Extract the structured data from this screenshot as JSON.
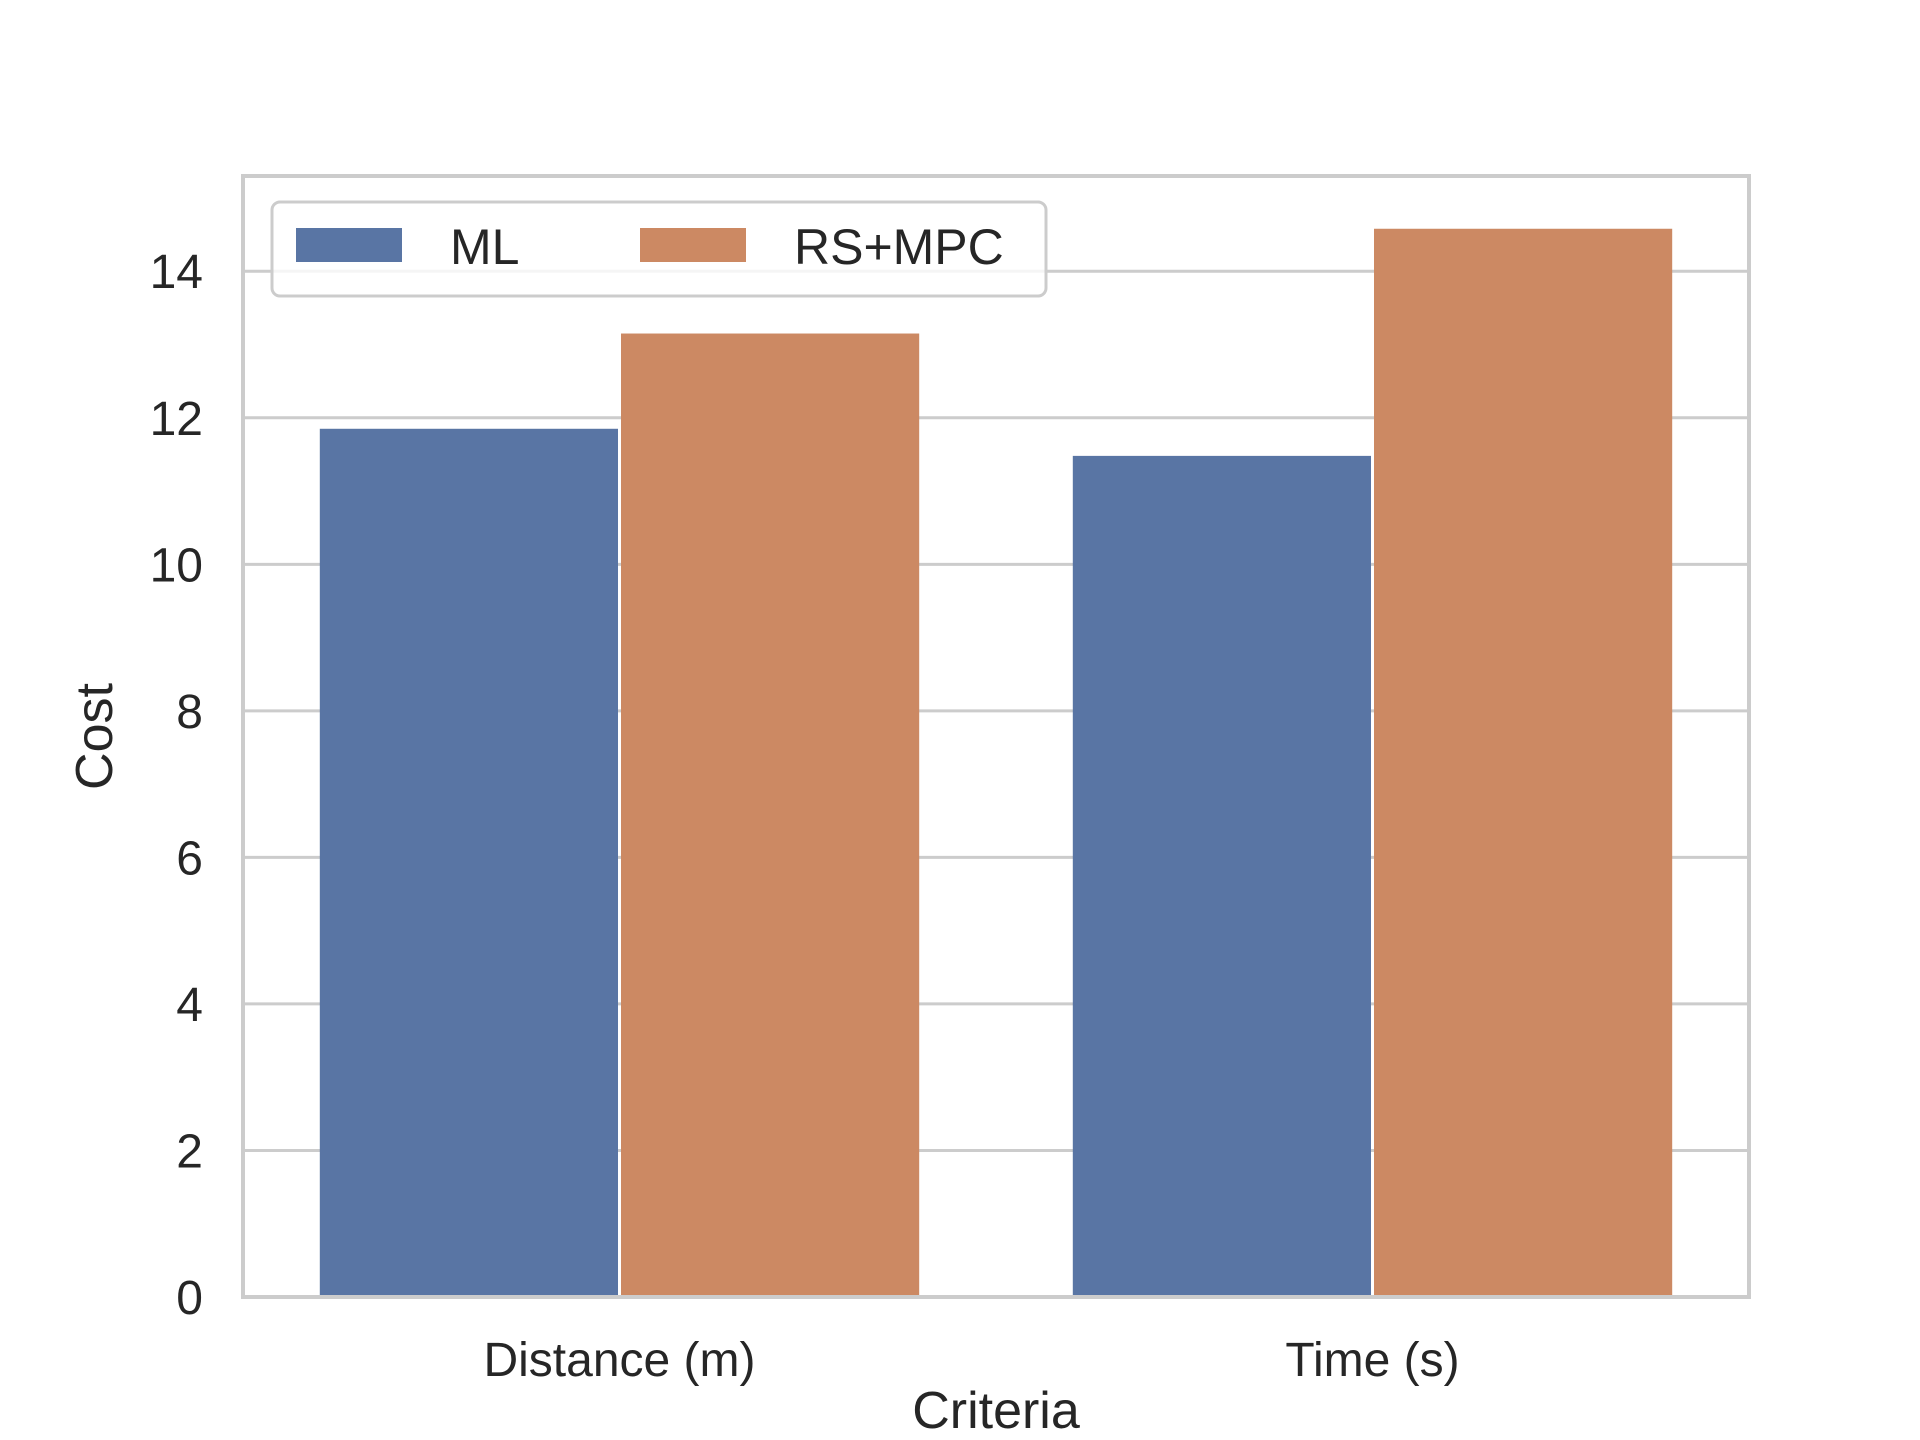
{
  "chart_data": {
    "type": "bar",
    "xlabel": "Criteria",
    "ylabel": "Cost",
    "categories": [
      "Distance (m)",
      "Time (s)"
    ],
    "series": [
      {
        "name": "ML",
        "values": [
          11.85,
          11.48
        ],
        "color": "#5975a4"
      },
      {
        "name": "RS+MPC",
        "values": [
          13.15,
          14.58
        ],
        "color": "#cc8963"
      }
    ],
    "ylim": [
      0,
      15.3
    ],
    "yticks": [
      0,
      2,
      4,
      6,
      8,
      10,
      12,
      14
    ],
    "grid": "horizontal",
    "legend": {
      "placement": "top-left",
      "columns": 2
    }
  }
}
